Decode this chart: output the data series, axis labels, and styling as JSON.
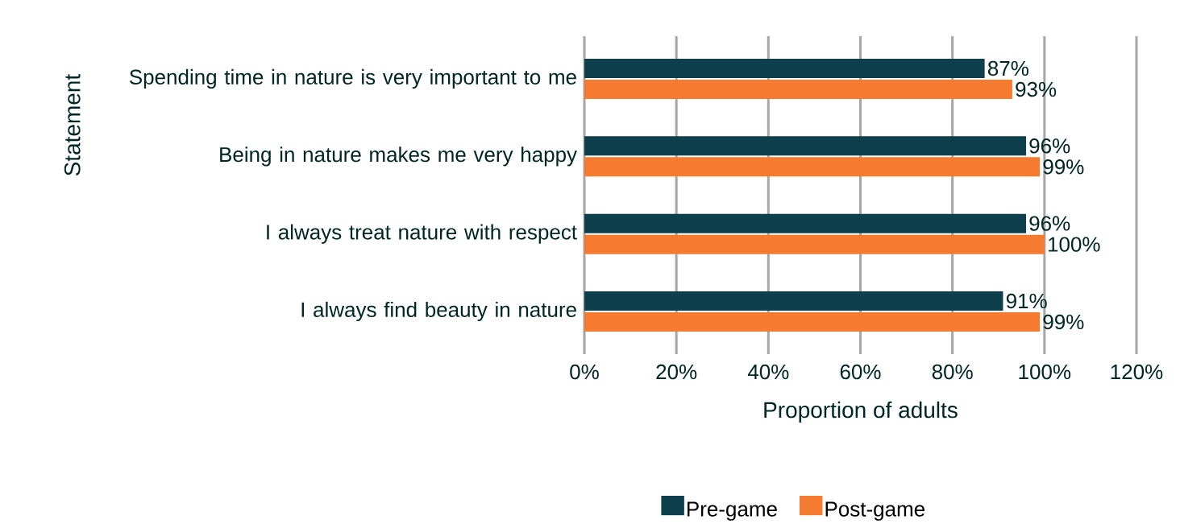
{
  "chart_data": {
    "type": "bar",
    "orientation": "horizontal",
    "xlabel": "Proportion of adults",
    "ylabel": "Statement",
    "categories": [
      "Spending time in nature is very important to me",
      "Being in nature makes me very happy",
      "I always treat nature with respect",
      "I always find beauty in nature"
    ],
    "series": [
      {
        "name": "Pre-game",
        "color": "#0d3f4c",
        "values": [
          87,
          96,
          96,
          91
        ],
        "value_labels": [
          "87%",
          "96%",
          "96%",
          "91%"
        ]
      },
      {
        "name": "Post-game",
        "color": "#f47b30",
        "values": [
          93,
          99,
          100,
          99
        ],
        "value_labels": [
          "93%",
          "99%",
          "100%",
          "99%"
        ]
      }
    ],
    "xlim": [
      0,
      120
    ],
    "xticks": [
      {
        "value": 0,
        "label": "0%"
      },
      {
        "value": 20,
        "label": "20%"
      },
      {
        "value": 40,
        "label": "40%"
      },
      {
        "value": 60,
        "label": "60%"
      },
      {
        "value": 80,
        "label": "80%"
      },
      {
        "value": 100,
        "label": "100%"
      },
      {
        "value": 120,
        "label": "120%"
      }
    ],
    "grid": "x",
    "legend": "bottom"
  }
}
